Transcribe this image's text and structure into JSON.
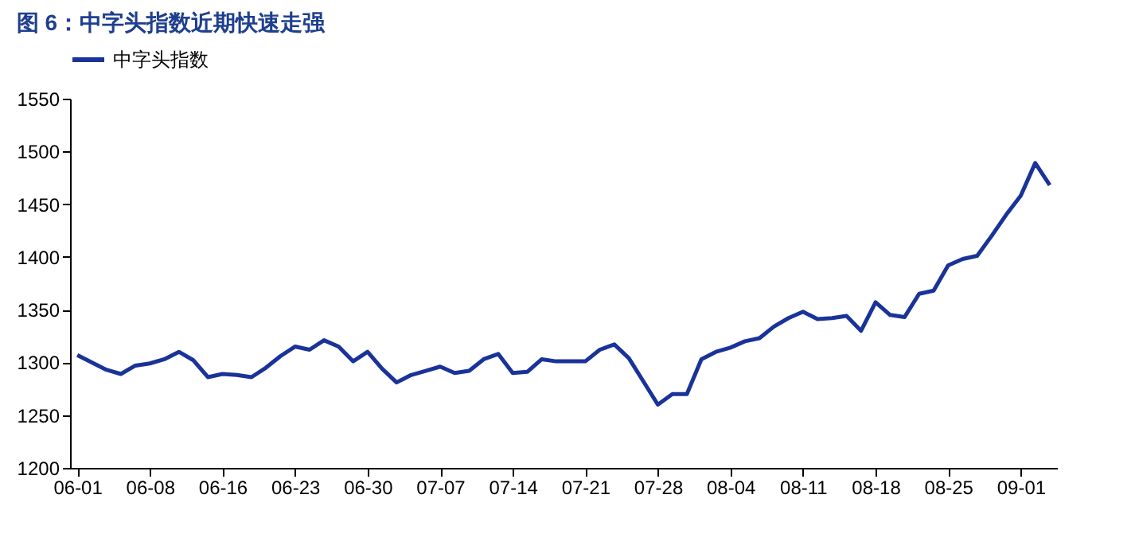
{
  "chart_data": {
    "type": "line",
    "title": "图 6：中字头指数近期快速走强",
    "categories": [
      "06-01",
      null,
      null,
      null,
      null,
      "06-08",
      null,
      null,
      null,
      null,
      "06-16",
      null,
      null,
      null,
      null,
      "06-23",
      null,
      null,
      null,
      null,
      "06-30",
      null,
      null,
      null,
      null,
      "07-07",
      null,
      null,
      null,
      null,
      "07-14",
      null,
      null,
      null,
      null,
      "07-21",
      null,
      null,
      null,
      null,
      "07-28",
      null,
      null,
      null,
      null,
      "08-04",
      null,
      null,
      null,
      null,
      "08-11",
      null,
      null,
      null,
      null,
      "08-18",
      null,
      null,
      null,
      null,
      "08-25",
      null,
      null,
      null,
      null,
      "09-01",
      null,
      null
    ],
    "series": [
      {
        "name": "中字头指数",
        "color": "#1a3399",
        "values": [
          1307,
          1300,
          1293,
          1289,
          1297,
          1299,
          1303,
          1310,
          1302,
          1286,
          1289,
          1288,
          1286,
          1295,
          1306,
          1315,
          1312,
          1321,
          1315,
          1301,
          1310,
          1294,
          1281,
          1288,
          1292,
          1296,
          1290,
          1292,
          1303,
          1308,
          1290,
          1291,
          1303,
          1301,
          1301,
          1301,
          1312,
          1317,
          1304,
          1282,
          1260,
          1270,
          1270,
          1303,
          1310,
          1314,
          1320,
          1323,
          1334,
          1342,
          1348,
          1341,
          1342,
          1344,
          1330,
          1357,
          1345,
          1343,
          1365,
          1368,
          1392,
          1398,
          1401,
          1420,
          1440,
          1458,
          1489,
          1468
        ]
      }
    ],
    "ylim": [
      1200,
      1550
    ],
    "yticks": [
      1200,
      1250,
      1300,
      1350,
      1400,
      1450,
      1500,
      1550
    ],
    "grid": false,
    "legend": "top",
    "marker": "none",
    "line_style": "solid"
  }
}
